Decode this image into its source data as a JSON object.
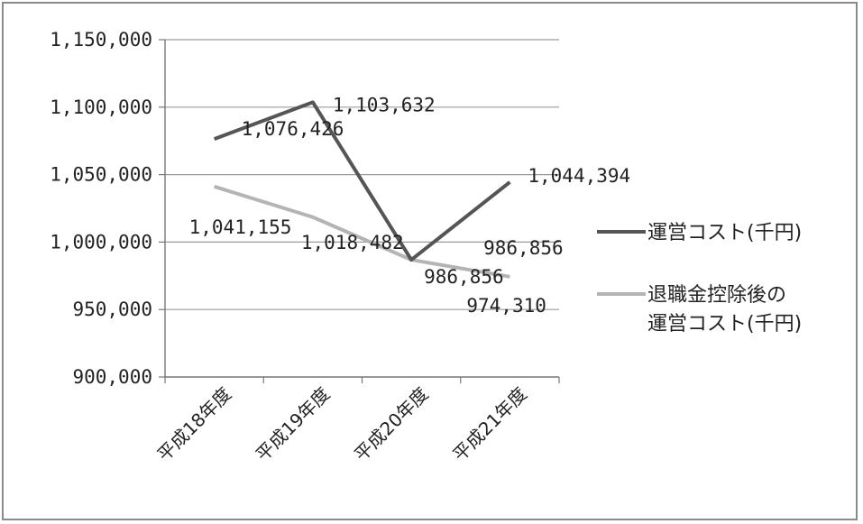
{
  "chart_data": {
    "type": "line",
    "categories": [
      "平成18年度",
      "平成19年度",
      "平成20年度",
      "平成21年度"
    ],
    "ylim": [
      900000,
      1150000
    ],
    "y_ticks": [
      "1,150,000",
      "1,100,000",
      "1,050,000",
      "1,000,000",
      "950,000",
      "900,000"
    ],
    "y_tick_values": [
      1150000,
      1100000,
      1050000,
      1000000,
      950000,
      900000
    ],
    "grid": true,
    "legend_position": "right",
    "series": [
      {
        "name": "運営コスト(千円)",
        "name_lines": [
          "運営コスト(千円)"
        ],
        "color": "#555555",
        "values": [
          1076426,
          1103632,
          986856,
          1044394
        ],
        "labels": [
          "1,076,426",
          "1,103,632",
          "986,856",
          "1,044,394"
        ]
      },
      {
        "name": "退職金控除後の運営コスト(千円)",
        "name_lines": [
          "退職金控除後の",
          "運営コスト(千円)"
        ],
        "color": "#b4b4b4",
        "values": [
          1041155,
          1018482,
          986856,
          974310
        ],
        "labels": [
          "1,041,155",
          "1,018,482",
          "986,856",
          "974,310"
        ]
      }
    ]
  }
}
